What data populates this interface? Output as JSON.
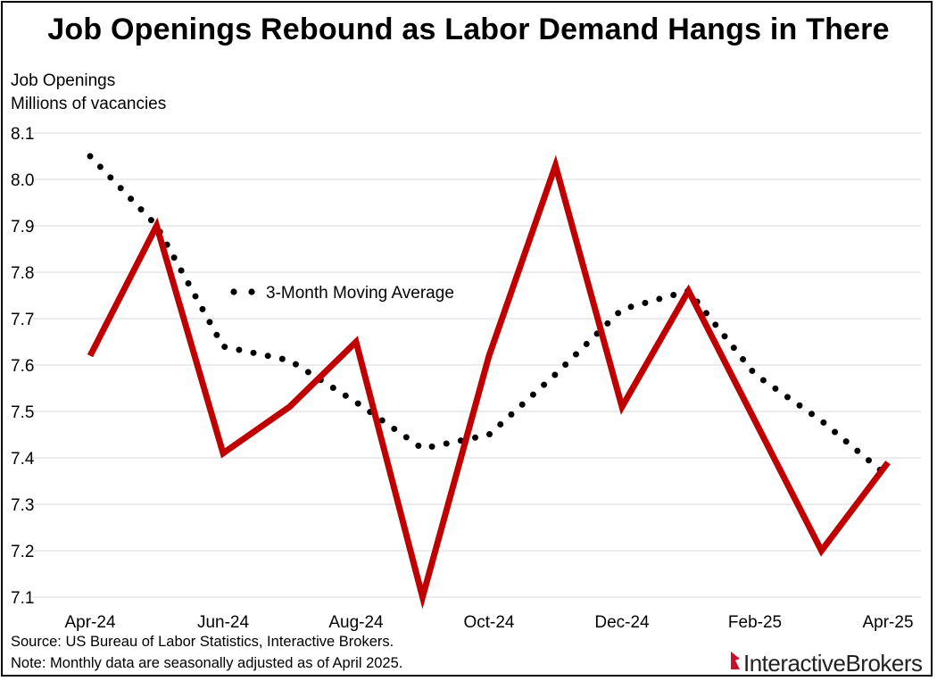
{
  "chart_data": {
    "type": "line",
    "title": "Job Openings Rebound as Labor Demand Hangs in There",
    "ylabel_line1": "Job Openings",
    "ylabel_line2": "Millions of vacancies",
    "ylim": [
      7.1,
      8.1
    ],
    "yticks": [
      "8.1",
      "8.0",
      "7.9",
      "7.8",
      "7.7",
      "7.6",
      "7.5",
      "7.4",
      "7.3",
      "7.2",
      "7.1"
    ],
    "categories": [
      "Apr-24",
      "May-24",
      "Jun-24",
      "Jul-24",
      "Aug-24",
      "Sep-24",
      "Oct-24",
      "Nov-24",
      "Dec-24",
      "Jan-25",
      "Feb-25",
      "Mar-25",
      "Apr-25"
    ],
    "xtick_labels": [
      "Apr-24",
      "Jun-24",
      "Aug-24",
      "Oct-24",
      "Dec-24",
      "Feb-25",
      "Apr-25"
    ],
    "grid": true,
    "series": [
      {
        "name": "Job Openings",
        "style": "solid",
        "color": "#c00000",
        "values": [
          7.62,
          7.9,
          7.41,
          7.51,
          7.65,
          7.1,
          7.62,
          8.03,
          7.51,
          7.76,
          7.48,
          7.2,
          7.39
        ]
      },
      {
        "name": "3-Month Moving Average",
        "style": "dotted",
        "color": "#000000",
        "values": [
          8.05,
          7.9,
          7.64,
          7.61,
          7.52,
          7.42,
          7.45,
          7.58,
          7.72,
          7.76,
          7.58,
          7.48,
          7.36
        ]
      }
    ],
    "annotation": "3-Month Moving Average"
  },
  "footer": {
    "source": "Source: US Bureau of Labor Statistics, Interactive Brokers.",
    "note": "Note: Monthly data are seasonally adjusted as of April 2025."
  },
  "logo": {
    "part1": "Interactive",
    "part2": "Brokers"
  }
}
